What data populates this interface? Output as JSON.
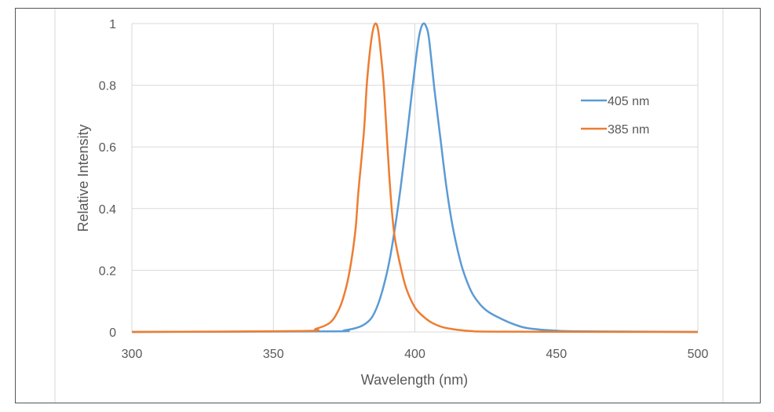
{
  "chart_data": {
    "type": "line",
    "title": "",
    "xlabel": "Wavelength (nm)",
    "ylabel": "Relative Intensity",
    "xlim": [
      300,
      500
    ],
    "ylim": [
      0,
      1
    ],
    "xticks": [
      "300",
      "350",
      "400",
      "450",
      "500"
    ],
    "yticks": [
      "0",
      "0.2",
      "0.4",
      "0.6",
      "0.8",
      "1"
    ],
    "grid": true,
    "legend_position": "right",
    "series": [
      {
        "name": "405 nm",
        "color": "#5b9bd5",
        "x": [
          300,
          370,
          375,
          380,
          383,
          385,
          387,
          389,
          391,
          393,
          395,
          397,
          399,
          401,
          402,
          403,
          404,
          405,
          407,
          409,
          411,
          413,
          415,
          417,
          420,
          423,
          426,
          430,
          435,
          440,
          450,
          460,
          500
        ],
        "y": [
          0,
          0.002,
          0.005,
          0.015,
          0.03,
          0.05,
          0.09,
          0.15,
          0.23,
          0.34,
          0.47,
          0.62,
          0.78,
          0.93,
          0.98,
          1.0,
          0.99,
          0.95,
          0.78,
          0.63,
          0.48,
          0.36,
          0.27,
          0.2,
          0.13,
          0.09,
          0.065,
          0.045,
          0.025,
          0.012,
          0.004,
          0.002,
          0
        ]
      },
      {
        "name": "385 nm",
        "color": "#ed7d31",
        "x": [
          300,
          360,
          365,
          370,
          373,
          375,
          377,
          379,
          380,
          382,
          383,
          384,
          385,
          386,
          387,
          388,
          389,
          390,
          391,
          392,
          393,
          395,
          397,
          400,
          403,
          406,
          410,
          415,
          420,
          430,
          500
        ],
        "y": [
          0,
          0.003,
          0.01,
          0.03,
          0.07,
          0.12,
          0.2,
          0.33,
          0.45,
          0.65,
          0.8,
          0.9,
          0.97,
          1.0,
          0.98,
          0.9,
          0.8,
          0.65,
          0.5,
          0.38,
          0.3,
          0.21,
          0.14,
          0.08,
          0.05,
          0.03,
          0.015,
          0.007,
          0.003,
          0.001,
          0
        ]
      }
    ]
  }
}
